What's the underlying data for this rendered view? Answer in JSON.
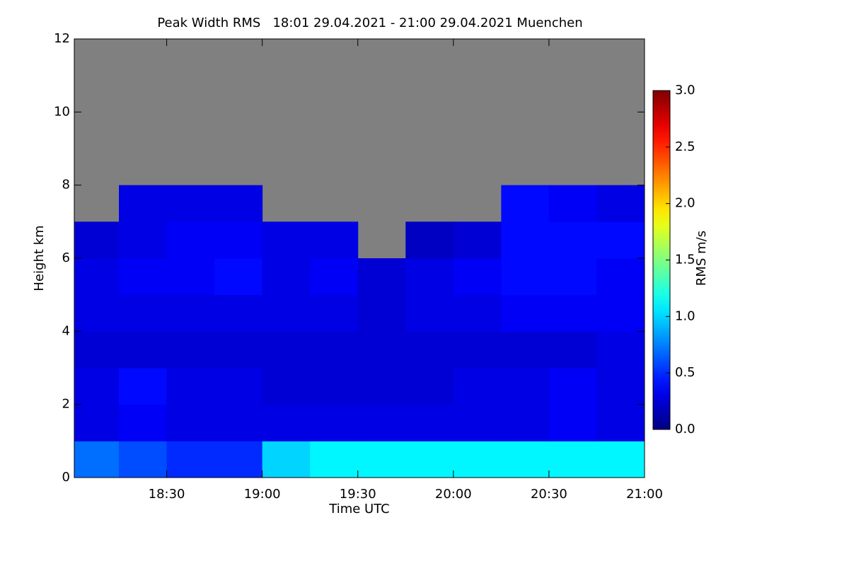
{
  "chart_data": {
    "type": "heatmap",
    "title": "Peak Width RMS   18:01 29.04.2021 - 21:00 29.04.2021 Muenchen",
    "xlabel": "Time UTC",
    "ylabel": "Height km",
    "colormap": "jet",
    "nodata_color": "#808080",
    "xlim": [
      18.0167,
      21.0
    ],
    "xticks": [
      {
        "value": 18.5,
        "label": "18:30"
      },
      {
        "value": 19.0,
        "label": "19:00"
      },
      {
        "value": 19.5,
        "label": "19:30"
      },
      {
        "value": 20.0,
        "label": "20:00"
      },
      {
        "value": 20.5,
        "label": "20:30"
      },
      {
        "value": 21.0,
        "label": "21:00"
      }
    ],
    "ylim": [
      0,
      12
    ],
    "yticks": [
      0,
      2,
      4,
      6,
      8,
      10,
      12
    ],
    "xbins": [
      18.0167,
      18.25,
      18.5,
      18.75,
      19.0,
      19.25,
      19.5,
      19.75,
      20.0,
      20.25,
      20.5,
      20.75,
      21.0
    ],
    "ybins": [
      0,
      1,
      2,
      3,
      4,
      5,
      6,
      7,
      8,
      9,
      10,
      11,
      12
    ],
    "values": [
      [
        0.7,
        0.6,
        0.5,
        0.5,
        1.0,
        1.1,
        1.1,
        1.1,
        1.1,
        1.1,
        1.1,
        1.1
      ],
      [
        0.3,
        0.35,
        0.3,
        0.3,
        0.3,
        0.3,
        0.3,
        0.3,
        0.3,
        0.3,
        0.35,
        0.3
      ],
      [
        0.3,
        0.4,
        0.3,
        0.3,
        0.25,
        0.25,
        0.25,
        0.25,
        0.3,
        0.3,
        0.35,
        0.3
      ],
      [
        0.25,
        0.25,
        0.25,
        0.25,
        0.25,
        0.25,
        0.25,
        0.25,
        0.25,
        0.25,
        0.25,
        0.3
      ],
      [
        0.3,
        0.3,
        0.3,
        0.3,
        0.3,
        0.3,
        0.25,
        0.3,
        0.3,
        0.35,
        0.35,
        0.35
      ],
      [
        0.3,
        0.35,
        0.35,
        0.4,
        0.3,
        0.35,
        0.25,
        0.3,
        0.35,
        0.4,
        0.4,
        0.35
      ],
      [
        0.25,
        0.3,
        0.35,
        0.35,
        0.3,
        0.3,
        null,
        0.2,
        0.25,
        0.4,
        0.4,
        0.4
      ],
      [
        null,
        0.3,
        0.3,
        0.3,
        null,
        null,
        null,
        null,
        null,
        0.4,
        0.35,
        0.3
      ],
      [
        null,
        null,
        null,
        null,
        null,
        null,
        null,
        null,
        null,
        null,
        null,
        null
      ],
      [
        null,
        null,
        null,
        null,
        null,
        null,
        null,
        null,
        null,
        null,
        null,
        null
      ],
      [
        null,
        null,
        null,
        null,
        null,
        null,
        null,
        null,
        null,
        null,
        null,
        null
      ],
      [
        null,
        null,
        null,
        null,
        null,
        null,
        null,
        null,
        null,
        null,
        null,
        null
      ]
    ],
    "colorbar": {
      "label": "RMS m/s",
      "lim": [
        0,
        3
      ],
      "ticks": [
        {
          "value": 0,
          "label": "0.0"
        },
        {
          "value": 0.5,
          "label": "0.5"
        },
        {
          "value": 1,
          "label": "1.0"
        },
        {
          "value": 1.5,
          "label": "1.5"
        },
        {
          "value": 2,
          "label": "2.0"
        },
        {
          "value": 2.5,
          "label": "2.5"
        },
        {
          "value": 3,
          "label": "3.0"
        }
      ]
    }
  }
}
